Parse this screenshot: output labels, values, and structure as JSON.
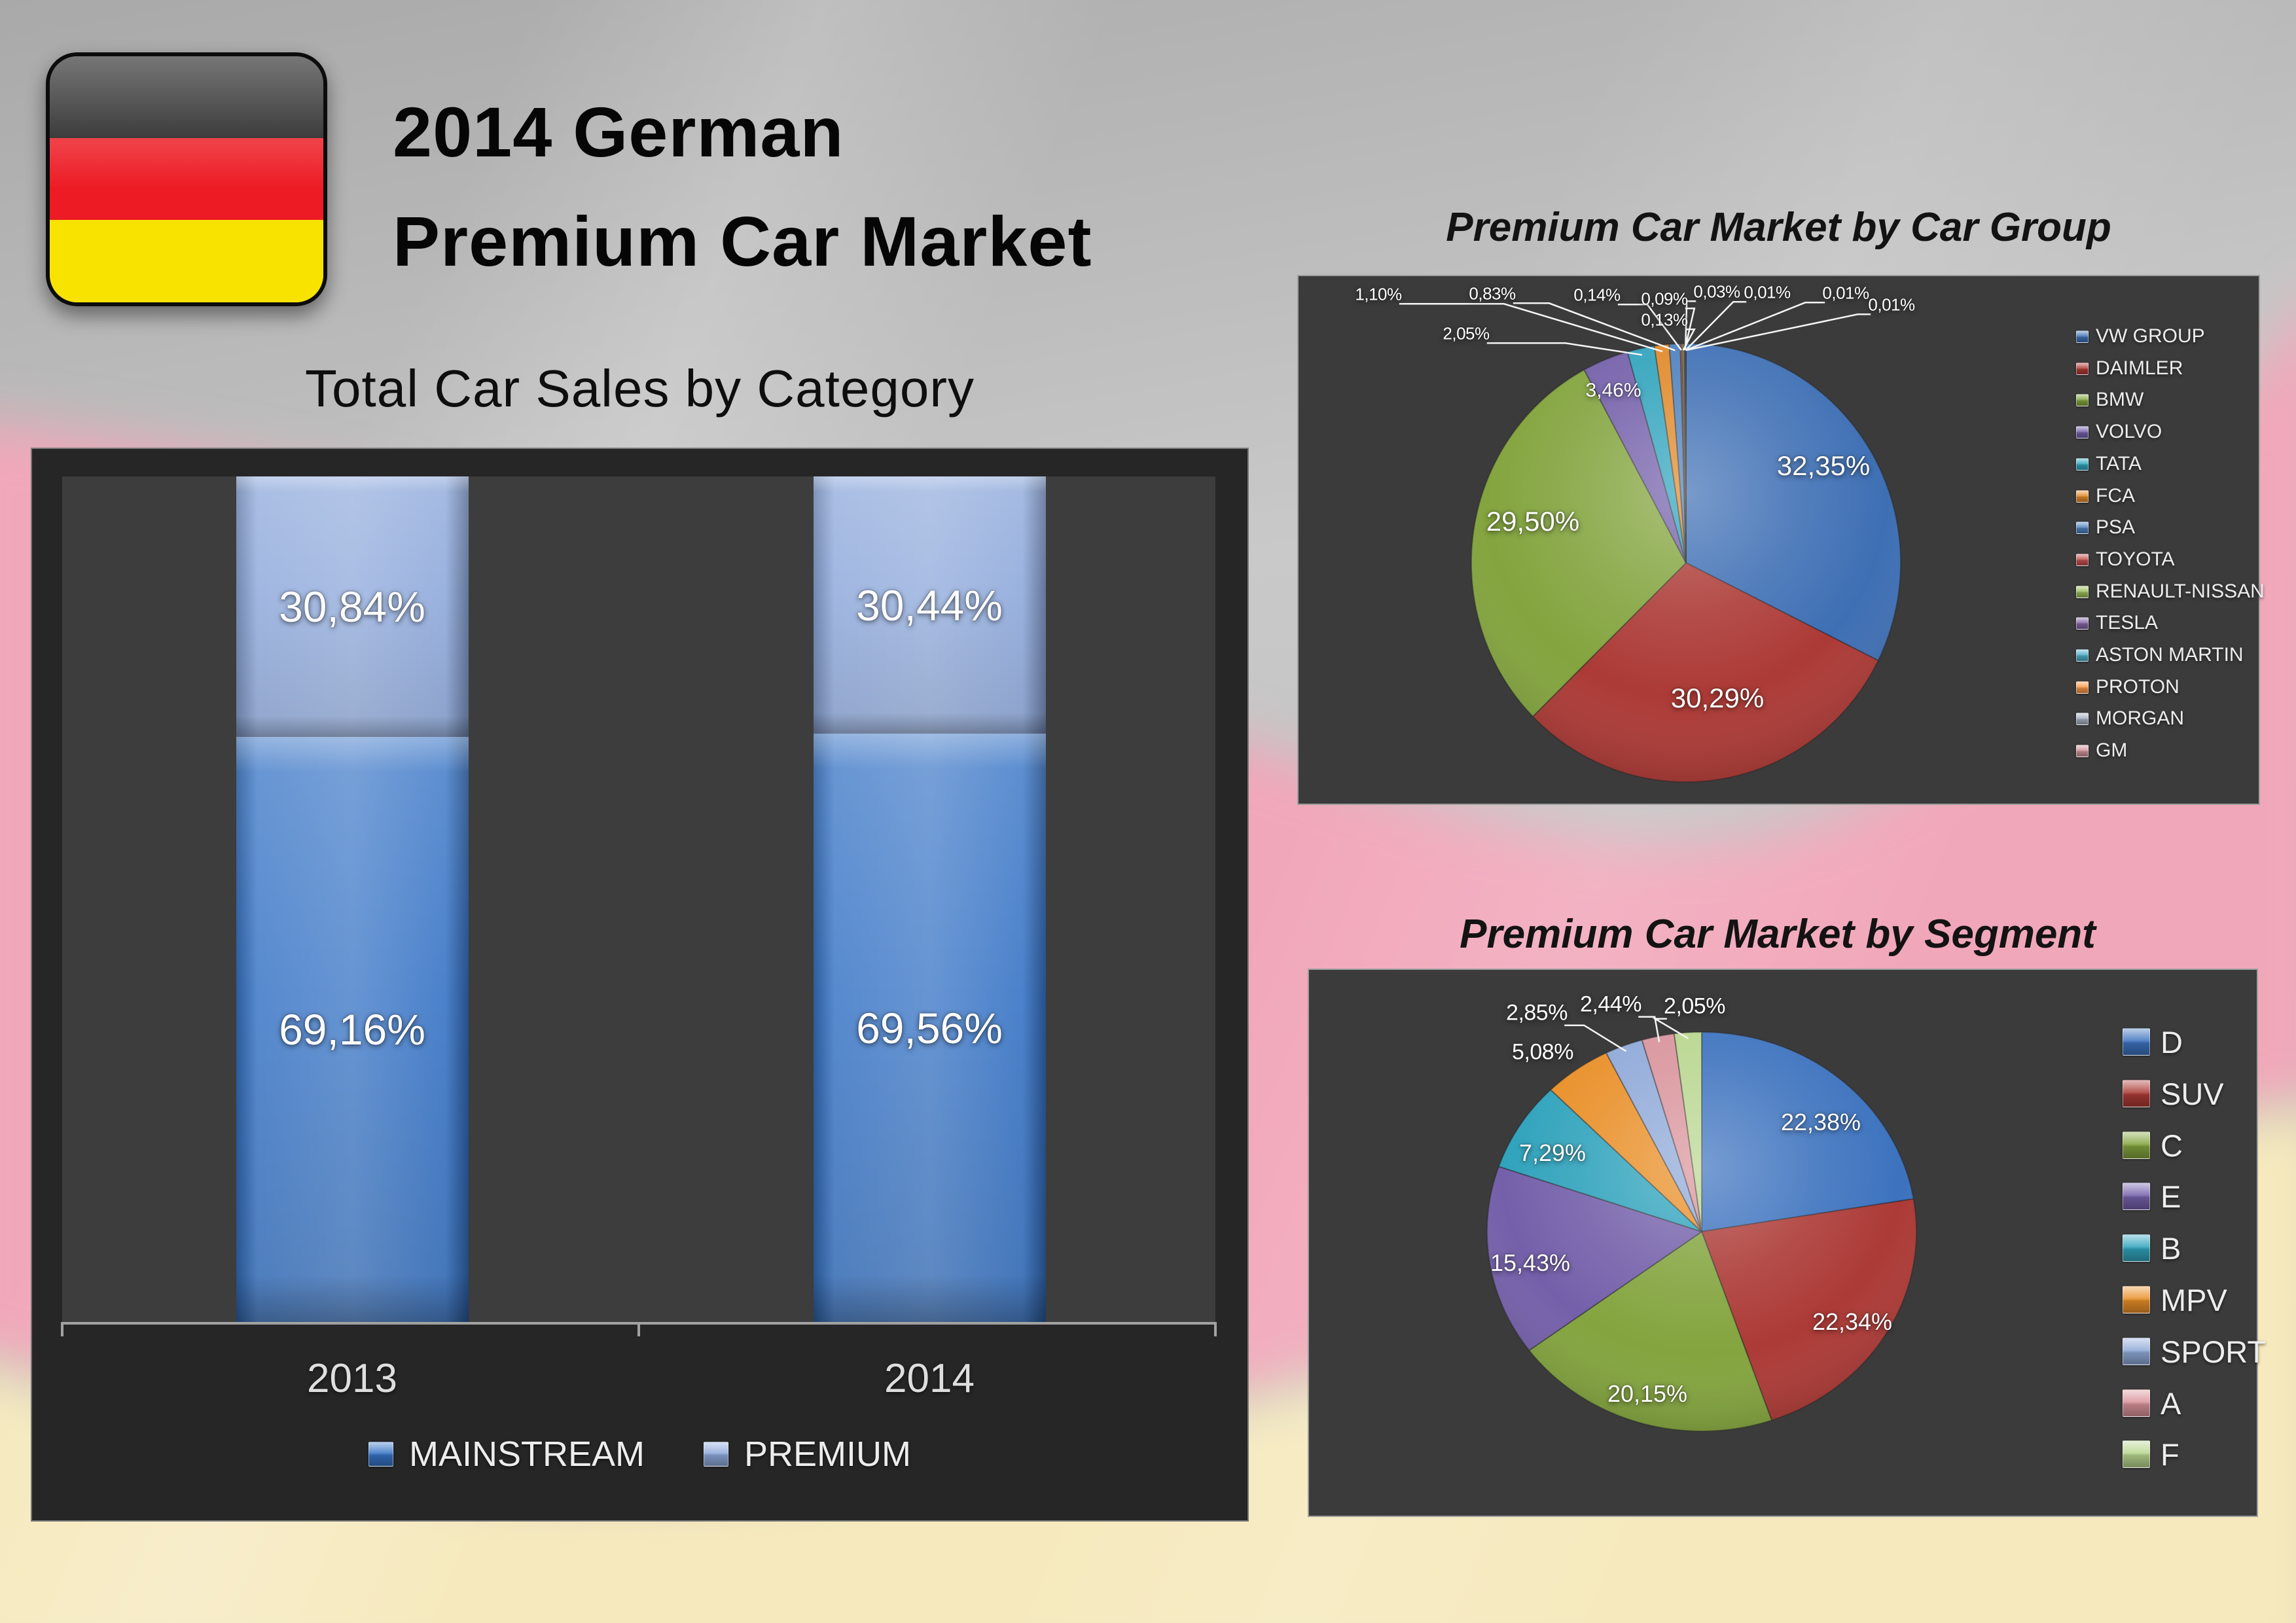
{
  "slide": {
    "title_line1": "2014 German",
    "title_line2": "Premium Car Market",
    "flag_icon": "german-flag-icon",
    "background_colors": {
      "gray": "#c2c2c2",
      "pink": "#f1a7ba",
      "cream": "#f6e9bd"
    }
  },
  "chart_data": [
    {
      "type": "bar",
      "subtype": "stacked-column-100",
      "title": "Total Car Sales by Category",
      "categories": [
        "2013",
        "2014"
      ],
      "series": [
        {
          "name": "MAINSTREAM",
          "color": "#3673c5",
          "values": [
            69.16,
            69.56
          ],
          "value_labels": [
            "69,16%",
            "69,56%"
          ]
        },
        {
          "name": "PREMIUM",
          "color": "#8ea9db",
          "values": [
            30.84,
            30.44
          ],
          "value_labels": [
            "30,84%",
            "30,44%"
          ]
        }
      ],
      "ylim": [
        0,
        100
      ],
      "grid": false,
      "legend_position": "bottom",
      "panel_bg": "#262626",
      "plot_bg": "#3d3d3d"
    },
    {
      "type": "pie",
      "title": "Premium Car Market by Car Group",
      "labels": [
        "VW GROUP",
        "DAIMLER",
        "BMW",
        "VOLVO",
        "TATA",
        "FCA",
        "PSA",
        "TOYOTA",
        "RENAULT-NISSAN",
        "TESLA",
        "ASTON MARTIN",
        "PROTON",
        "MORGAN",
        "GM"
      ],
      "values": [
        32.35,
        30.29,
        29.5,
        3.46,
        2.05,
        1.1,
        0.83,
        0.14,
        0.13,
        0.09,
        0.03,
        0.01,
        0.01,
        0.01
      ],
      "value_labels": [
        "32,35%",
        "30,29%",
        "29,50%",
        "3,46%",
        "2,05%",
        "1,10%",
        "0,83%",
        "0,14%",
        "0,13%",
        "0,09%",
        "0,03%",
        "0,01%",
        "0,01%",
        "0,01%"
      ],
      "colors": [
        "#3e6fb4",
        "#ac3a36",
        "#83a43e",
        "#7460aa",
        "#30a3bc",
        "#e08929",
        "#4e81bd",
        "#c0504d",
        "#9bbb59",
        "#8064a2",
        "#4bacc6",
        "#f79646",
        "#a6aebd",
        "#d0919b"
      ],
      "legend_position": "right",
      "panel_bg": "#3b3b3b"
    },
    {
      "type": "pie",
      "title": "Premium Car Market by Segment",
      "labels": [
        "D",
        "SUV",
        "C",
        "E",
        "B",
        "MPV",
        "SPORT",
        "A",
        "F"
      ],
      "values": [
        22.38,
        22.34,
        20.15,
        15.43,
        7.29,
        5.08,
        2.85,
        2.44,
        2.05
      ],
      "value_labels": [
        "22,38%",
        "22,34%",
        "20,15%",
        "15,43%",
        "7,29%",
        "5,08%",
        "2,85%",
        "2,44%",
        "2,05%"
      ],
      "colors": [
        "#3c72be",
        "#ac3a36",
        "#83a43e",
        "#7460aa",
        "#30a3bc",
        "#e98f28",
        "#8fa9d8",
        "#d9939b",
        "#b8d68f"
      ],
      "legend_position": "right",
      "panel_bg": "#3b3b3b"
    }
  ]
}
